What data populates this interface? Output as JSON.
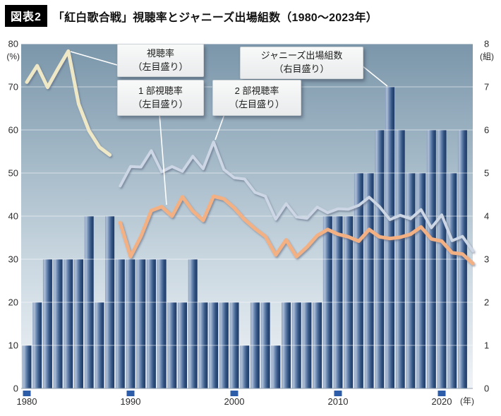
{
  "header": {
    "badge": "図表2",
    "title": "「紅白歌合戦」視聴率とジャニーズ出場組数（1980～2023年）"
  },
  "axes": {
    "left_unit": "(%)",
    "right_unit": "(組)",
    "x_unit": "(年)",
    "left_ticks": [
      80,
      70,
      60,
      50,
      40,
      30,
      20,
      10,
      0
    ],
    "right_ticks": [
      8,
      7,
      6,
      5,
      4,
      3,
      2,
      1,
      0
    ],
    "x_ticks": [
      1980,
      1990,
      2000,
      2010,
      2020
    ]
  },
  "annotations": {
    "rating": {
      "line1": "視聴率",
      "line2": "（左目盛り）"
    },
    "johnnys": {
      "line1": "ジャニーズ出場組数",
      "line2": "（右目盛り）"
    },
    "part1": {
      "line1": "1 部視聴率",
      "line2": "（左目盛り）"
    },
    "part2": {
      "line1": "2 部視聴率",
      "line2": "（左目盛り）"
    }
  },
  "chart_data": {
    "type": "combo-bar-line",
    "x_range": [
      1980,
      2023
    ],
    "left_axis": {
      "label": "(%)",
      "ylim": [
        0,
        80
      ]
    },
    "right_axis": {
      "label": "(組)",
      "ylim": [
        0,
        8
      ]
    },
    "grid": true,
    "series": [
      {
        "name": "ジャニーズ出場組数",
        "type": "bar",
        "axis": "right",
        "color": "#1c3968",
        "start_year": 1980,
        "values": [
          1,
          2,
          3,
          3,
          3,
          3,
          4,
          2,
          4,
          3,
          3,
          3,
          3,
          3,
          2,
          2,
          3,
          2,
          2,
          2,
          2,
          1,
          2,
          2,
          1,
          2,
          2,
          2,
          2,
          4,
          4,
          4,
          5,
          5,
          6,
          7,
          6,
          5,
          5,
          6,
          6,
          5,
          6,
          0
        ]
      },
      {
        "name": "視聴率",
        "type": "line",
        "axis": "left",
        "color": "#efe8c6",
        "start_year": 1980,
        "values": [
          71.1,
          74.9,
          69.9,
          74.2,
          78.3,
          66.0,
          59.8,
          56.0,
          54.2
        ]
      },
      {
        "name": "2部視聴率",
        "type": "line",
        "axis": "left",
        "color": "#ccd6e4",
        "start_year": 1989,
        "values": [
          47.0,
          51.5,
          51.4,
          55.2,
          50.3,
          51.5,
          50.4,
          53.9,
          51.0,
          57.2,
          50.8,
          48.9,
          48.6,
          45.5,
          44.6,
          39.3,
          42.9,
          39.8,
          39.5,
          42.1,
          40.8,
          41.7,
          41.6,
          42.5,
          44.4,
          42.2,
          39.2,
          40.2,
          39.4,
          41.5,
          37.3,
          40.3,
          34.3,
          35.3,
          31.9
        ]
      },
      {
        "name": "1部視聴率",
        "type": "line",
        "axis": "left",
        "color": "#f2b083",
        "start_year": 1989,
        "values": [
          38.5,
          30.6,
          35.3,
          41.3,
          42.2,
          40.0,
          44.5,
          41.2,
          39.0,
          44.6,
          44.0,
          41.9,
          39.2,
          37.1,
          35.3,
          31.0,
          34.5,
          30.6,
          32.8,
          35.5,
          36.9,
          35.8,
          35.2,
          34.2,
          36.9,
          35.2,
          34.8,
          35.1,
          35.8,
          37.5,
          34.7,
          34.2,
          31.5,
          31.2,
          29.0
        ]
      }
    ]
  }
}
